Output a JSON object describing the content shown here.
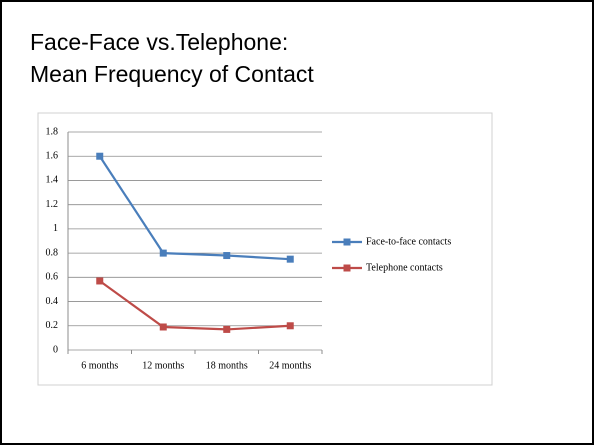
{
  "chart_data": {
    "type": "line",
    "title": [
      "Face-Face vs.Telephone:",
      "Mean Frequency of Contact"
    ],
    "categories": [
      "6 months",
      "12 months",
      "18 months",
      "24 months"
    ],
    "series": [
      {
        "name": "Face-to-face contacts",
        "color": "#4a7ebb",
        "values": [
          1.6,
          0.8,
          0.78,
          0.75
        ]
      },
      {
        "name": "Telephone contacts",
        "color": "#be4b48",
        "values": [
          0.57,
          0.19,
          0.17,
          0.2
        ]
      }
    ],
    "ylim": [
      0,
      1.8
    ],
    "yticks": [
      0,
      0.2,
      0.4,
      0.6,
      0.8,
      1,
      1.2,
      1.4,
      1.6,
      1.8
    ],
    "grid": true,
    "legend": "right"
  }
}
